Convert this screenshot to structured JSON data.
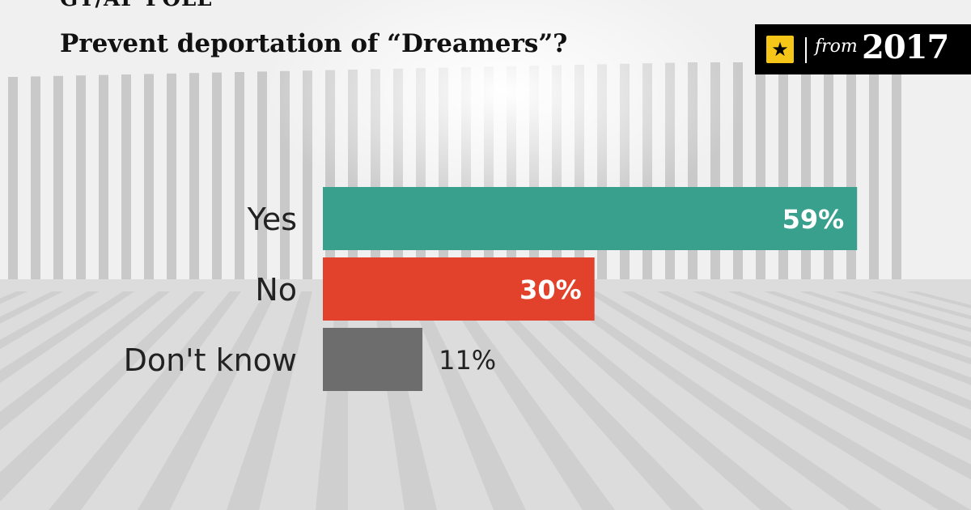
{
  "kicker": "GT/AP POLL",
  "title": "Prevent deportation of “Dreamers”?",
  "badge": {
    "from": "from",
    "year": "2017",
    "icon": "star-icon",
    "accent": "#f5c518"
  },
  "chart_data": {
    "type": "bar",
    "orientation": "horizontal",
    "categories": [
      "Yes",
      "No",
      "Don't know"
    ],
    "values": [
      59,
      30,
      11
    ],
    "value_labels": [
      "59%",
      "30%",
      "11%"
    ],
    "colors": [
      "#3aa08e",
      "#e2412b",
      "#6d6d6d"
    ],
    "title": "Prevent deportation of “Dreamers”?",
    "xlabel": "",
    "ylabel": "",
    "xlim": [
      0,
      100
    ],
    "grid": false,
    "legend": "none"
  }
}
